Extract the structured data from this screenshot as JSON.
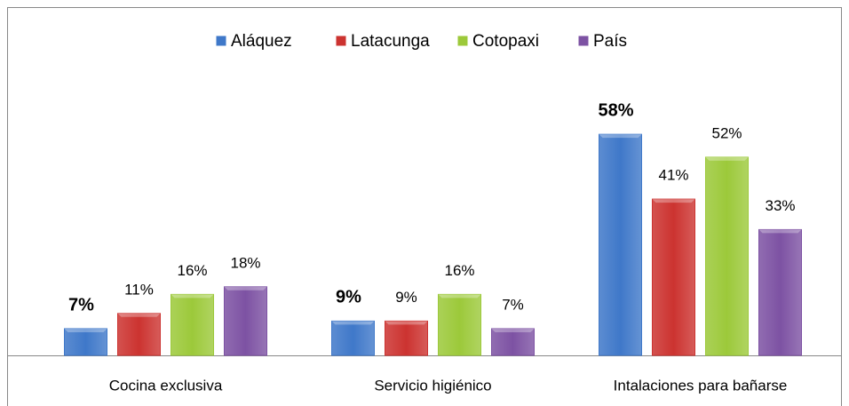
{
  "chart_data": {
    "type": "bar",
    "categories": [
      "Cocina exclusiva",
      "Servicio higiénico",
      "Intalaciones para bañarse"
    ],
    "series": [
      {
        "name": "Aláquez",
        "color": "#3f78c9",
        "values": [
          7,
          9,
          58
        ],
        "value_labels": [
          "7%",
          "9%",
          "58%"
        ]
      },
      {
        "name": "Latacunga",
        "color": "#cc3330",
        "values": [
          11,
          9,
          41
        ],
        "value_labels": [
          "11%",
          "9%",
          "41%"
        ]
      },
      {
        "name": "Cotopaxi",
        "color": "#9cc93a",
        "values": [
          16,
          16,
          52
        ],
        "value_labels": [
          "16%",
          "16%",
          "52%"
        ]
      },
      {
        "name": "País",
        "color": "#7d52a3",
        "values": [
          18,
          7,
          33
        ],
        "value_labels": [
          "18%",
          "7%",
          "33%"
        ]
      }
    ],
    "legend": "top"
  }
}
